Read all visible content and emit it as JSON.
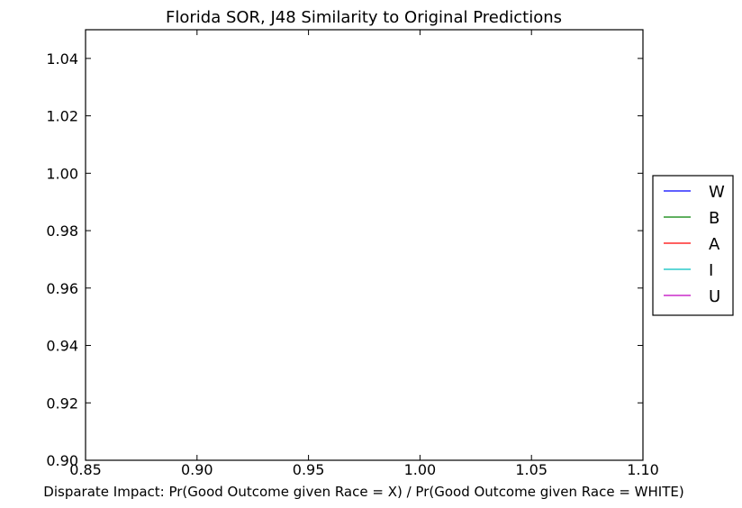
{
  "chart_data": {
    "type": "line",
    "title": "Florida SOR, J48 Similarity to Original Predictions",
    "xlabel": "Disparate Impact: Pr(Good Outcome given Race = X) / Pr(Good Outcome given Race = WHITE)",
    "ylabel": "",
    "xlim": [
      0.85,
      1.1
    ],
    "ylim": [
      0.9,
      1.05
    ],
    "x_ticks": [
      "0.85",
      "0.90",
      "0.95",
      "1.00",
      "1.05",
      "1.10"
    ],
    "y_ticks": [
      "0.90",
      "0.92",
      "0.94",
      "0.96",
      "0.98",
      "1.00",
      "1.02",
      "1.04"
    ],
    "grid": false,
    "legend_position": "right, outside plot area",
    "series": [
      {
        "name": "W",
        "color": "#0000ff",
        "x": [],
        "y": []
      },
      {
        "name": "B",
        "color": "#008000",
        "x": [],
        "y": []
      },
      {
        "name": "A",
        "color": "#ff0000",
        "x": [],
        "y": []
      },
      {
        "name": "I",
        "color": "#00bfbf",
        "x": [],
        "y": []
      },
      {
        "name": "U",
        "color": "#bf00bf",
        "x": [],
        "y": []
      }
    ]
  }
}
